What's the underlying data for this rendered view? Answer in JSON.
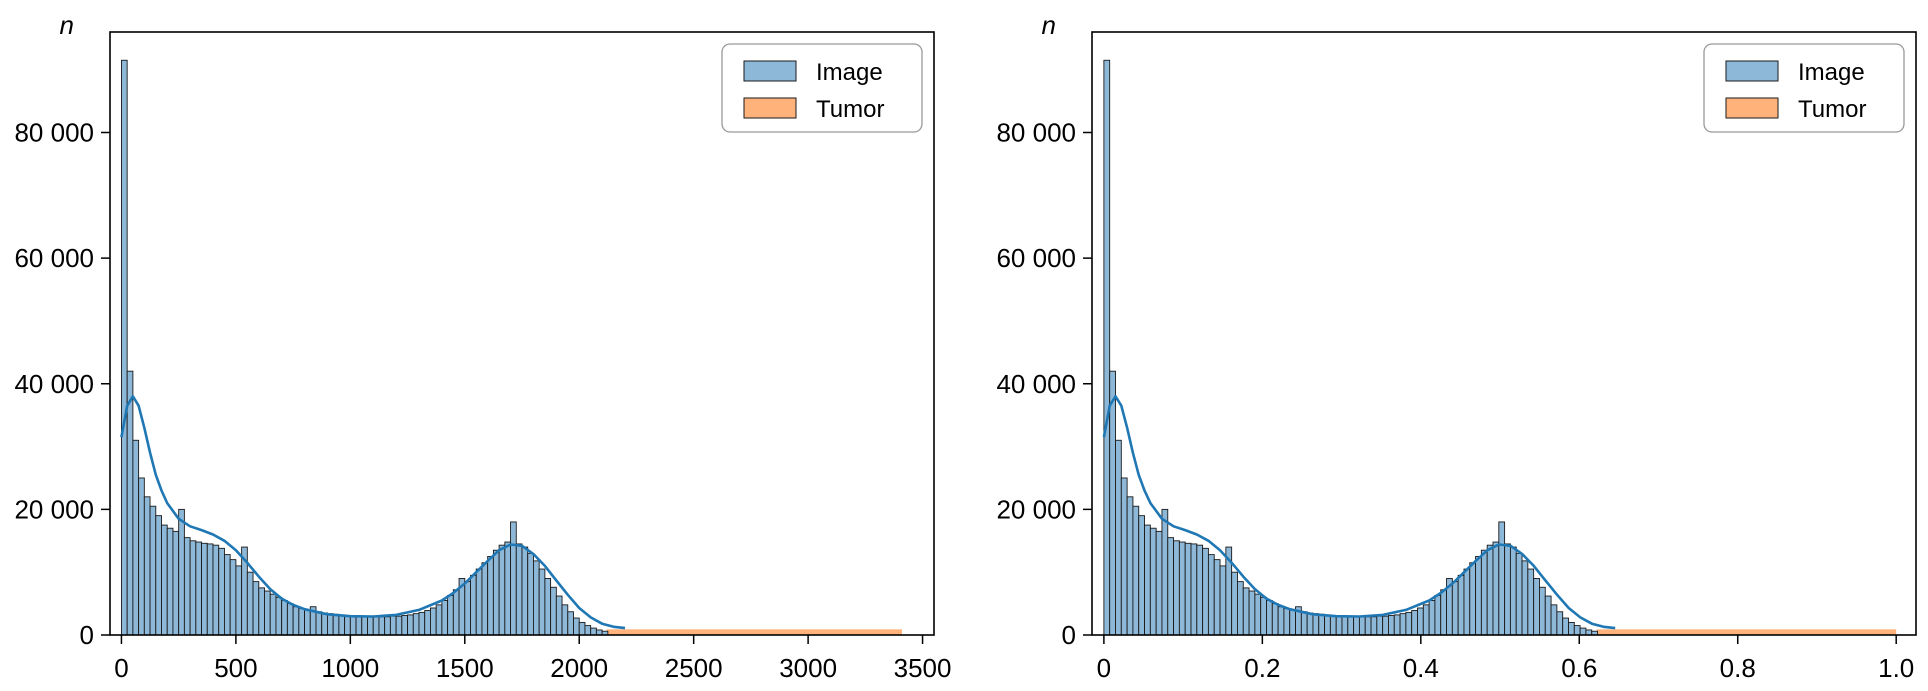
{
  "chart_data": [
    {
      "type": "bar",
      "ylabel": "n",
      "xlim": [
        -50,
        3550
      ],
      "ylim": [
        0,
        96000
      ],
      "xticks": [
        0,
        500,
        1000,
        1500,
        2000,
        2500,
        3000,
        3500
      ],
      "xtick_labels": [
        "0",
        "500",
        "1000",
        "1500",
        "2000",
        "2500",
        "3000",
        "3500"
      ],
      "yticks": [
        0,
        20000,
        40000,
        60000,
        80000
      ],
      "ytick_labels": [
        "0",
        "20 000",
        "40 000",
        "60 000",
        "80 000"
      ],
      "legend": {
        "placement": "top-right",
        "entries": [
          "Image",
          "Tumor"
        ]
      },
      "series": [
        {
          "name": "Image",
          "color": "#8eb8d8",
          "bin_start": 0,
          "bin_width": 25,
          "values": [
            91500,
            42000,
            31000,
            25000,
            22000,
            20500,
            19000,
            17500,
            17000,
            16500,
            20000,
            15500,
            15000,
            14800,
            14600,
            14500,
            14300,
            13800,
            12800,
            12000,
            11000,
            14000,
            10000,
            8500,
            7500,
            7000,
            6500,
            6000,
            5500,
            5000,
            4500,
            4200,
            4000,
            4500,
            3700,
            3500,
            3400,
            3300,
            3200,
            3100,
            3000,
            3000,
            2900,
            2900,
            2900,
            2900,
            2900,
            3000,
            3000,
            3100,
            3200,
            3400,
            3600,
            3900,
            4300,
            4800,
            5500,
            6300,
            7200,
            9000,
            8500,
            9500,
            10500,
            11500,
            12500,
            13500,
            14300,
            14800,
            18000,
            14500,
            14000,
            13000,
            11800,
            10500,
            9000,
            7600,
            6200,
            4800,
            3700,
            2700,
            2000,
            1500,
            1100,
            800,
            600
          ]
        },
        {
          "name": "Tumor",
          "color": "#ffb27a",
          "x_range": [
            2120,
            3410
          ],
          "value": 900
        }
      ],
      "kde": {
        "color": "#1f77b4",
        "x": [
          0,
          25,
          50,
          75,
          100,
          125,
          150,
          175,
          200,
          250,
          300,
          350,
          400,
          450,
          500,
          550,
          600,
          650,
          700,
          750,
          800,
          900,
          1000,
          1100,
          1200,
          1300,
          1400,
          1450,
          1500,
          1550,
          1600,
          1650,
          1700,
          1750,
          1800,
          1850,
          1900,
          1950,
          2000,
          2050,
          2100,
          2150,
          2200
        ],
        "y": [
          31500,
          36500,
          38000,
          36500,
          33000,
          29000,
          25500,
          23000,
          21000,
          18500,
          17300,
          16700,
          16000,
          15000,
          13500,
          11500,
          9300,
          7300,
          5800,
          4800,
          4100,
          3300,
          3000,
          2950,
          3200,
          4000,
          5500,
          6700,
          8200,
          10000,
          11800,
          13500,
          14400,
          14200,
          12900,
          11000,
          8700,
          6400,
          4300,
          2800,
          1800,
          1300,
          1100
        ]
      }
    },
    {
      "type": "bar",
      "ylabel": "n",
      "xlim": [
        -0.015,
        1.025
      ],
      "ylim": [
        0,
        96000
      ],
      "xticks": [
        0,
        0.2,
        0.4,
        0.6,
        0.8,
        1.0
      ],
      "xtick_labels": [
        "0",
        "0.2",
        "0.4",
        "0.6",
        "0.8",
        "1.0"
      ],
      "yticks": [
        0,
        20000,
        40000,
        60000,
        80000
      ],
      "ytick_labels": [
        "0",
        "20 000",
        "40 000",
        "60 000",
        "80 000"
      ],
      "legend": {
        "placement": "top-right",
        "entries": [
          "Image",
          "Tumor"
        ]
      },
      "series": [
        {
          "name": "Image",
          "color": "#8eb8d8",
          "bin_start": 0,
          "bin_width": 0.00733,
          "values": [
            91500,
            42000,
            31000,
            25000,
            22000,
            20500,
            19000,
            17500,
            17000,
            16500,
            20000,
            15500,
            15000,
            14800,
            14600,
            14500,
            14300,
            13800,
            12800,
            12000,
            11000,
            14000,
            10000,
            8500,
            7500,
            7000,
            6500,
            6000,
            5500,
            5000,
            4500,
            4200,
            4000,
            4500,
            3700,
            3500,
            3400,
            3300,
            3200,
            3100,
            3000,
            3000,
            2900,
            2900,
            2900,
            2900,
            2900,
            3000,
            3000,
            3100,
            3200,
            3400,
            3600,
            3900,
            4300,
            4800,
            5500,
            6300,
            7200,
            9000,
            8500,
            9500,
            10500,
            11500,
            12500,
            13500,
            14300,
            14800,
            18000,
            14500,
            14000,
            13000,
            11800,
            10500,
            9000,
            7600,
            6200,
            4800,
            3700,
            2700,
            2000,
            1500,
            1100,
            800,
            600
          ]
        },
        {
          "name": "Tumor",
          "color": "#ffb27a",
          "x_range": [
            0.622,
            1.0
          ],
          "value": 900
        }
      ],
      "kde": {
        "color": "#1f77b4",
        "x": [
          0,
          0.00733,
          0.01466,
          0.022,
          0.0293,
          0.0366,
          0.044,
          0.0513,
          0.0587,
          0.0733,
          0.088,
          0.1026,
          0.1173,
          0.132,
          0.1466,
          0.1613,
          0.176,
          0.1906,
          0.2053,
          0.22,
          0.2346,
          0.264,
          0.2933,
          0.3226,
          0.352,
          0.3813,
          0.4106,
          0.4253,
          0.44,
          0.4546,
          0.4693,
          0.484,
          0.4986,
          0.5133,
          0.528,
          0.5426,
          0.5573,
          0.572,
          0.5866,
          0.6013,
          0.616,
          0.6306,
          0.6453
        ],
        "y": [
          31500,
          36500,
          38000,
          36500,
          33000,
          29000,
          25500,
          23000,
          21000,
          18500,
          17300,
          16700,
          16000,
          15000,
          13500,
          11500,
          9300,
          7300,
          5800,
          4800,
          4100,
          3300,
          3000,
          2950,
          3200,
          4000,
          5500,
          6700,
          8200,
          10000,
          11800,
          13500,
          14400,
          14200,
          12900,
          11000,
          8700,
          6400,
          4300,
          2800,
          1800,
          1300,
          1100
        ]
      }
    }
  ]
}
